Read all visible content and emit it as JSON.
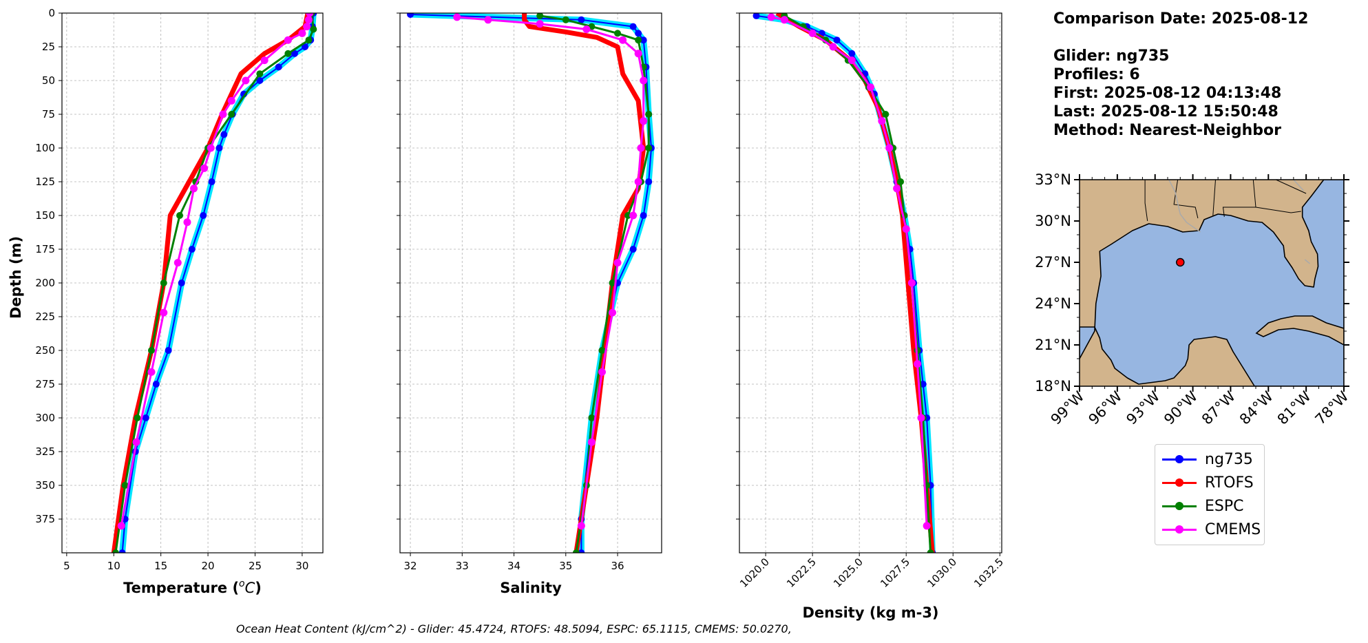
{
  "info": {
    "comparison_date": "Comparison Date: 2025-08-12",
    "glider": "Glider: ng735",
    "profiles": "Profiles: 6",
    "first": "First: 2025-08-12 04:13:48",
    "last": "Last: 2025-08-12 15:50:48",
    "method": "Method: Nearest-Neighbor"
  },
  "footer": "Ocean Heat Content (kJ/cm^2) - Glider: 45.4724,  RTOFS: 48.5094,  ESPC: 65.1115,  CMEMS: 50.0270,",
  "colors": {
    "ng735": "#0000ff",
    "ng735_fill": "#00e5ff",
    "RTOFS": "#ff0000",
    "ESPC": "#008000",
    "CMEMS": "#ff00ff",
    "land": "#d2b48c",
    "ocean": "#97b6e1"
  },
  "legend": [
    {
      "label": "ng735",
      "color": "#0000ff"
    },
    {
      "label": "RTOFS",
      "color": "#ff0000"
    },
    {
      "label": "ESPC",
      "color": "#008000"
    },
    {
      "label": "CMEMS",
      "color": "#ff00ff"
    }
  ],
  "map": {
    "lat_labels": [
      "33°N",
      "30°N",
      "27°N",
      "24°N",
      "21°N",
      "18°N"
    ],
    "lon_labels": [
      "99°W",
      "96°W",
      "93°W",
      "90°W",
      "87°W",
      "84°W",
      "81°W",
      "78°W"
    ],
    "extent": {
      "lon": [
        -99,
        -78
      ],
      "lat": [
        18,
        33
      ]
    },
    "marker": {
      "lon": -91,
      "lat": 27
    }
  },
  "chart_data": [
    {
      "type": "line",
      "xlabel": "Temperature (°C)",
      "ylabel": "Depth (m)",
      "xlim": [
        4.5,
        32.2
      ],
      "ylim": [
        400,
        0
      ],
      "xticks": [
        "5",
        "10",
        "15",
        "20",
        "25",
        "30"
      ],
      "yticks": [
        "0",
        "25",
        "50",
        "75",
        "100",
        "125",
        "150",
        "175",
        "200",
        "225",
        "250",
        "275",
        "300",
        "325",
        "350",
        "375"
      ],
      "grid": true,
      "series": [
        {
          "name": "ng735",
          "x": [
            31.2,
            31.1,
            30.9,
            30.3,
            29.2,
            27.5,
            25.5,
            23.8,
            22.6,
            21.7,
            21.2,
            20.4,
            19.5,
            18.3,
            17.2,
            15.8,
            14.5,
            13.4,
            12.3,
            11.2,
            10.9
          ],
          "y": [
            0,
            10,
            20,
            25,
            30,
            40,
            50,
            60,
            75,
            90,
            100,
            125,
            150,
            175,
            200,
            250,
            275,
            300,
            325,
            375,
            400
          ]
        },
        {
          "name": "RTOFS",
          "x": [
            30.6,
            30.3,
            28.5,
            26.0,
            23.5,
            21.5,
            20.0,
            18.0,
            16.0,
            15.3,
            14.0,
            12.3,
            11.0,
            10.0
          ],
          "y": [
            0,
            10,
            20,
            30,
            45,
            75,
            100,
            125,
            150,
            200,
            250,
            300,
            350,
            400
          ]
        },
        {
          "name": "ESPC",
          "x": [
            31.0,
            31.2,
            30.7,
            28.5,
            25.5,
            22.5,
            20.0,
            18.7,
            17.0,
            15.3,
            14.0,
            12.5,
            11.2,
            10.2
          ],
          "y": [
            0,
            12,
            20,
            30,
            45,
            75,
            100,
            125,
            150,
            200,
            250,
            300,
            350,
            400
          ]
        },
        {
          "name": "CMEMS",
          "x": [
            30.8,
            30.7,
            30.5,
            30.0,
            28.5,
            26.0,
            24.0,
            22.5,
            21.6,
            20.3,
            19.6,
            18.5,
            17.8,
            16.8,
            15.3,
            14.0,
            12.4,
            10.8
          ],
          "y": [
            0,
            5,
            10,
            15,
            20,
            35,
            50,
            65,
            75,
            100,
            115,
            130,
            155,
            185,
            222,
            266,
            318,
            380
          ]
        }
      ]
    },
    {
      "type": "line",
      "xlabel": "Salinity",
      "xlim": [
        31.8,
        36.85
      ],
      "ylim": [
        400,
        0
      ],
      "xticks": [
        "32",
        "33",
        "34",
        "35",
        "36"
      ],
      "grid": true,
      "series": [
        {
          "name": "ng735",
          "x": [
            32.0,
            35.3,
            36.3,
            36.4,
            36.5,
            36.55,
            36.6,
            36.65,
            36.6,
            36.5,
            36.3,
            36.0,
            35.7,
            35.5,
            35.3,
            35.3
          ],
          "y": [
            1,
            5,
            10,
            15,
            20,
            40,
            75,
            100,
            125,
            150,
            175,
            200,
            250,
            300,
            375,
            400
          ]
        },
        {
          "name": "RTOFS",
          "x": [
            34.2,
            34.2,
            34.3,
            35.0,
            35.6,
            36.0,
            36.1,
            36.4,
            36.5,
            36.4,
            36.1,
            35.9,
            35.6,
            35.4,
            35.2
          ],
          "y": [
            0,
            5,
            10,
            14,
            18,
            25,
            45,
            65,
            100,
            130,
            150,
            200,
            300,
            350,
            400
          ]
        },
        {
          "name": "ESPC",
          "x": [
            34.5,
            35.0,
            35.5,
            36.0,
            36.4,
            36.5,
            36.6,
            36.6,
            36.45,
            36.2,
            35.9,
            35.7,
            35.5,
            35.4,
            35.2
          ],
          "y": [
            2,
            5,
            10,
            15,
            20,
            40,
            75,
            100,
            125,
            150,
            200,
            250,
            300,
            350,
            400
          ]
        },
        {
          "name": "CMEMS",
          "x": [
            32.9,
            33.5,
            34.5,
            35.4,
            36.1,
            36.4,
            36.5,
            36.5,
            36.45,
            36.4,
            36.3,
            36.0,
            35.9,
            35.7,
            35.5,
            35.3
          ],
          "y": [
            3,
            5,
            8,
            12,
            20,
            30,
            50,
            80,
            100,
            125,
            150,
            185,
            222,
            266,
            318,
            380
          ]
        }
      ]
    },
    {
      "type": "line",
      "xlabel": "Density (kg m-3)",
      "xlim": [
        1018.6,
        1032.6
      ],
      "ylim": [
        400,
        0
      ],
      "xticks": [
        "1020.0",
        "1022.5",
        "1025.0",
        "1027.5",
        "1030.0",
        "1032.5"
      ],
      "grid": true,
      "series": [
        {
          "name": "ng735",
          "x": [
            1019.5,
            1021.0,
            1022.2,
            1023.0,
            1023.8,
            1024.6,
            1025.3,
            1025.8,
            1026.2,
            1026.6,
            1027.0,
            1027.4,
            1027.7,
            1027.9,
            1028.2,
            1028.4,
            1028.6,
            1028.8,
            1028.9
          ],
          "y": [
            2,
            5,
            10,
            15,
            20,
            30,
            45,
            60,
            80,
            100,
            125,
            150,
            175,
            200,
            250,
            275,
            300,
            350,
            400
          ]
        },
        {
          "name": "RTOFS",
          "x": [
            1020.6,
            1021.8,
            1023.2,
            1024.5,
            1025.3,
            1026.0,
            1026.6,
            1027.0,
            1027.3,
            1027.6,
            1027.9,
            1028.3,
            1028.6,
            1028.9
          ],
          "y": [
            0,
            10,
            20,
            35,
            50,
            70,
            100,
            125,
            150,
            200,
            250,
            300,
            350,
            400
          ]
        },
        {
          "name": "ESPC",
          "x": [
            1021.0,
            1022.0,
            1023.2,
            1024.4,
            1025.5,
            1026.4,
            1026.8,
            1027.2,
            1027.4,
            1027.8,
            1028.1,
            1028.4,
            1028.6,
            1028.8
          ],
          "y": [
            2,
            10,
            20,
            35,
            55,
            75,
            100,
            125,
            150,
            200,
            250,
            300,
            350,
            400
          ]
        },
        {
          "name": "CMEMS",
          "x": [
            1020.3,
            1021.0,
            1022.5,
            1023.6,
            1024.6,
            1025.6,
            1026.2,
            1026.6,
            1027.0,
            1027.5,
            1027.8,
            1028.1,
            1028.3,
            1028.6
          ],
          "y": [
            3,
            5,
            15,
            25,
            35,
            55,
            80,
            100,
            130,
            160,
            200,
            260,
            300,
            380
          ]
        }
      ]
    }
  ]
}
